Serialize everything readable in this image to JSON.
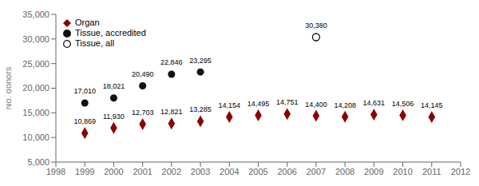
{
  "chart_data": {
    "type": "scatter",
    "ylabel": "No. donors",
    "series": [
      {
        "name": "Organ",
        "color": "#8B0000",
        "marker": "diamond",
        "x": [
          1999,
          2000,
          2001,
          2002,
          2003,
          2004,
          2005,
          2006,
          2007,
          2008,
          2009,
          2010,
          2011
        ],
        "values": [
          10869,
          11930,
          12703,
          12821,
          13285,
          14154,
          14495,
          14751,
          14400,
          14208,
          14631,
          14506,
          14145
        ],
        "value_labels": [
          "10,869",
          "11,930",
          "12,703",
          "12,821",
          "13,285",
          "14,154",
          "14,495",
          "14,751",
          "14,400",
          "14,208",
          "14,631",
          "14,506",
          "14,145"
        ]
      },
      {
        "name": "Tissue, accredited",
        "color": "#111111",
        "marker": "circle",
        "x": [
          1999,
          2000,
          2001,
          2002,
          2003
        ],
        "values": [
          17010,
          18021,
          20490,
          22846,
          23295
        ],
        "value_labels": [
          "17,010",
          "18,021",
          "20,490",
          "22,846",
          "23,295"
        ]
      },
      {
        "name": "Tissue, all",
        "color": "#111111",
        "marker": "open_circle",
        "x": [
          2007
        ],
        "values": [
          30380
        ],
        "value_labels": [
          "30,380"
        ]
      }
    ],
    "xlim": [
      1998,
      2012
    ],
    "xticks": [
      1998,
      1999,
      2000,
      2001,
      2002,
      2003,
      2004,
      2005,
      2006,
      2007,
      2008,
      2009,
      2010,
      2011,
      2012
    ],
    "ylim": [
      5000,
      35000
    ],
    "yticks": [
      {
        "value": 5000,
        "label": "5,000"
      },
      {
        "value": 10000,
        "label": "10,000"
      },
      {
        "value": 15000,
        "label": "15,000"
      },
      {
        "value": 20000,
        "label": "20,000"
      },
      {
        "value": 25000,
        "label": "25,000"
      },
      {
        "value": 30000,
        "label": "30,000"
      },
      {
        "value": 35000,
        "label": "35,000"
      }
    ],
    "data_labels": true,
    "legend": "upper left",
    "grid": false
  }
}
